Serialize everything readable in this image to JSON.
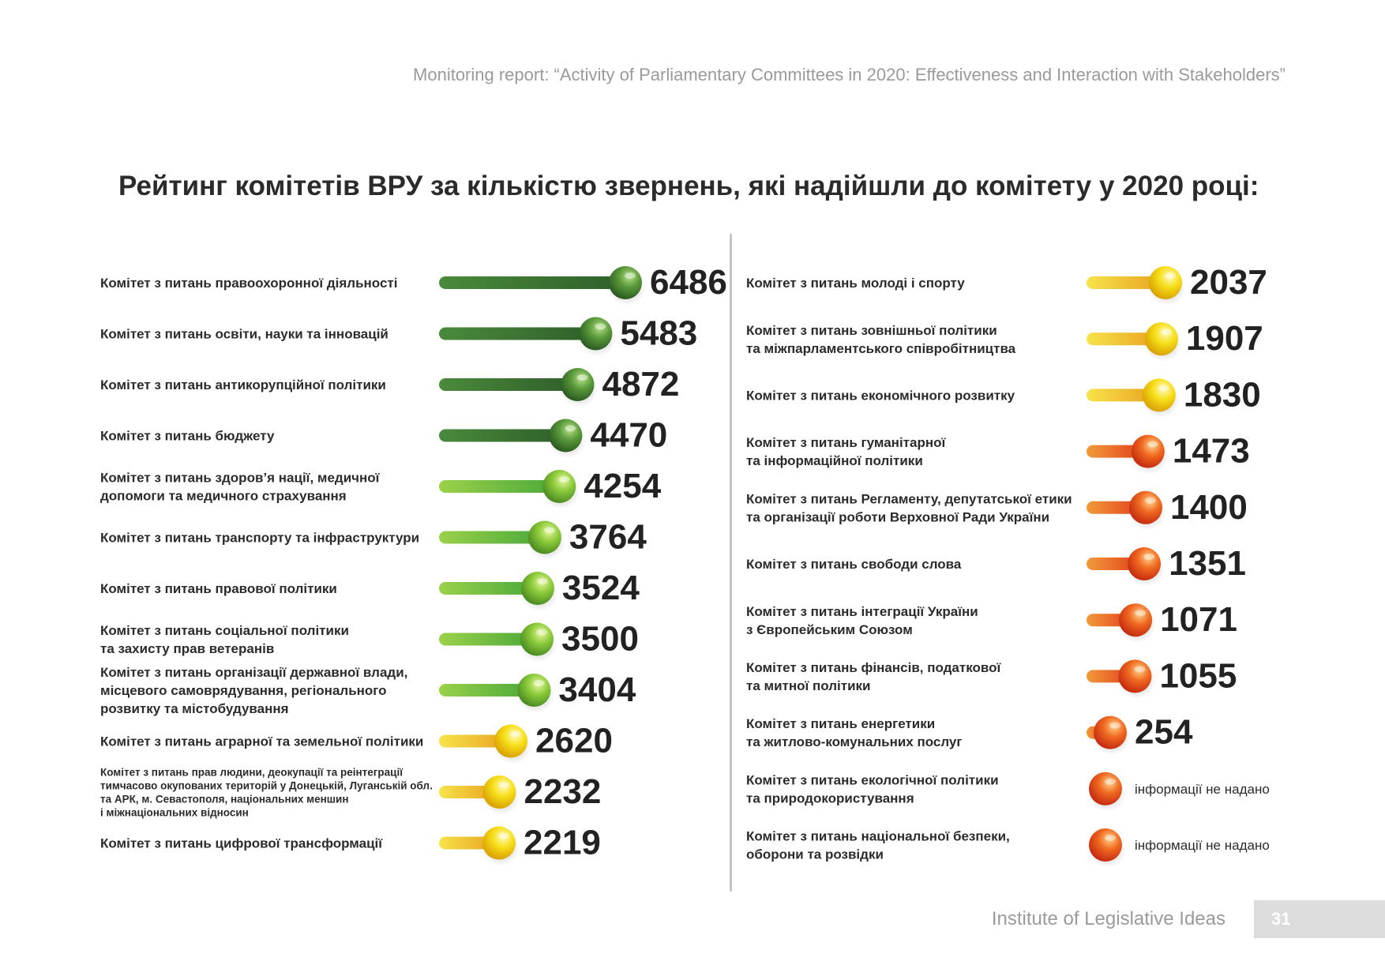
{
  "header": {
    "text": "Monitoring report: “Activity of Parliamentary Committees in 2020: Effectiveness and Interaction with Stakeholders”"
  },
  "title": "Рейтинг комітетів ВРУ за кількістю звернень, які надійшли до комітету у 2020 році:",
  "footer": {
    "org": "Institute of Legislative Ideas",
    "page": "31"
  },
  "colors": {
    "dark_green": "#3f7a35",
    "light_green": "#7cc243",
    "yellow": "#f6d21a",
    "orange_red": "#ec4a1e",
    "label": "#2b2b2b",
    "number": "#222222",
    "grey_text": "#9a9a9a"
  },
  "chart_data": {
    "type": "bar",
    "title": "Рейтинг комітетів ВРУ за кількістю звернень, які надійшли до комітету у 2020 році:",
    "xlabel": "",
    "ylabel": "",
    "no_data_label": "інформації не надано",
    "left_column": [
      {
        "label": "Комітет з питань правоохоронної діяльності",
        "value": 6486,
        "color": "dark_green"
      },
      {
        "label": "Комітет з питань освіти, науки та інновацій",
        "value": 5483,
        "color": "dark_green"
      },
      {
        "label": "Комітет з питань антикорупційної політики",
        "value": 4872,
        "color": "dark_green"
      },
      {
        "label": "Комітет з питань бюджету",
        "value": 4470,
        "color": "dark_green"
      },
      {
        "label": "Комітет з питань здоров’я нації, медичної\nдопомоги та медичного страхування",
        "value": 4254,
        "color": "light_green"
      },
      {
        "label": "Комітет з питань транспорту та інфраструктури",
        "value": 3764,
        "color": "light_green"
      },
      {
        "label": "Комітет з питань правової політики",
        "value": 3524,
        "color": "light_green"
      },
      {
        "label": "Комітет з питань соціальної політики\nта захисту прав ветеранів",
        "value": 3500,
        "color": "light_green"
      },
      {
        "label": "Комітет з питань організації державної влади,\nмісцевого самоврядування, регіонального\nрозвитку та містобудування",
        "value": 3404,
        "color": "light_green"
      },
      {
        "label": "Комітет з питань аграрної та земельної політики",
        "value": 2620,
        "color": "yellow"
      },
      {
        "label": "Комітет з питань прав людини, деокупації та реінтеграції\nтимчасово окупованих територій у Донецькій, Луганській обл.\nта АРК, м. Севастополя, національних меншин\nі міжнаціональних відносин",
        "value": 2232,
        "color": "yellow",
        "small": true
      },
      {
        "label": "Комітет з питань цифрової трансформації",
        "value": 2219,
        "color": "yellow"
      }
    ],
    "right_column": [
      {
        "label": "Комітет з питань молоді і спорту",
        "value": 2037,
        "color": "yellow"
      },
      {
        "label": "Комітет з питань зовнішньої політики\nта міжпарламентського співробітництва",
        "value": 1907,
        "color": "yellow"
      },
      {
        "label": "Комітет з питань економічного розвитку",
        "value": 1830,
        "color": "yellow"
      },
      {
        "label": "Комітет з питань гуманітарної\nта інформаційної політики",
        "value": 1473,
        "color": "orange_red"
      },
      {
        "label": "Комітет з питань Регламенту, депутатської етики\nта організації роботи Верховної Ради України",
        "value": 1400,
        "color": "orange_red"
      },
      {
        "label": "Комітет з питань свободи слова",
        "value": 1351,
        "color": "orange_red"
      },
      {
        "label": "Комітет з питань інтеграції України\nз Європейським Союзом",
        "value": 1071,
        "color": "orange_red"
      },
      {
        "label": "Комітет з питань фінансів, податкової\nта митної політики",
        "value": 1055,
        "color": "orange_red"
      },
      {
        "label": "Комітет з питань енергетики\nта житлово-комунальних послуг",
        "value": 254,
        "color": "orange_red"
      },
      {
        "label": "Комітет з питань екологічної політики\nта природокористування",
        "value": null,
        "color": "orange_red"
      },
      {
        "label": "Комітет з питань національної безпеки,\nоборони та розвідки",
        "value": null,
        "color": "orange_red"
      }
    ]
  }
}
